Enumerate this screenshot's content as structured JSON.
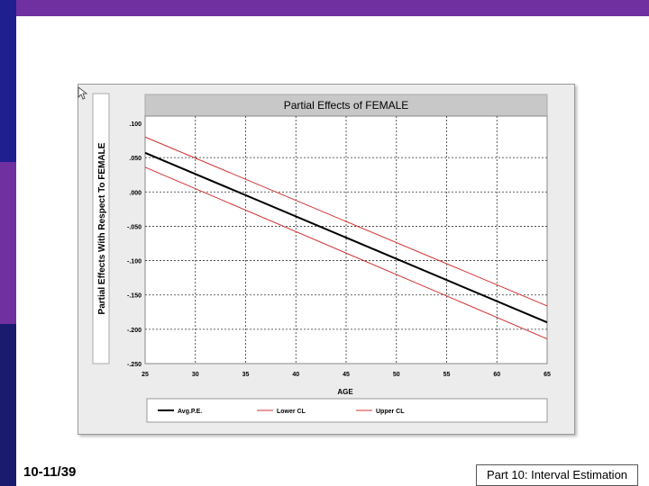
{
  "slide": {
    "number": "10-11/39",
    "footer": "Part 10: Interval Estimation"
  },
  "colors": {
    "top_bar": "#7030a0",
    "sidebar_top": "#1f1f8f",
    "sidebar_mid": "#7030a0",
    "sidebar_bottom": "#1a1a6e",
    "avg_line": "#000000",
    "ci_line": "#d03030"
  },
  "chart_data": {
    "type": "line",
    "title": "Partial Effects of FEMALE",
    "xlabel": "AGE",
    "ylabel": "Partial Effects With Respect To FEMALE",
    "xlim": [
      25,
      65
    ],
    "ylim": [
      -0.25,
      0.1
    ],
    "x_ticks": [
      25,
      30,
      35,
      40,
      45,
      50,
      55,
      60,
      65
    ],
    "y_ticks": [
      0.1,
      0.05,
      0.0,
      -0.05,
      -0.1,
      -0.15,
      -0.2,
      -0.25
    ],
    "x_tick_labels": [
      "25",
      "30",
      "35",
      "40",
      "45",
      "50",
      "55",
      "60",
      "65"
    ],
    "y_tick_labels": [
      ".100",
      ".050",
      ".000",
      "-.050",
      "-.100",
      "-.150",
      "-.200",
      "-.250"
    ],
    "grid": true,
    "legend_position": "bottom",
    "series": [
      {
        "name": "Avg.P.E.",
        "x": [
          25,
          65
        ],
        "y": [
          0.057,
          -0.19
        ],
        "color": "#000000",
        "width": 2
      },
      {
        "name": "Lower CL",
        "x": [
          25,
          65
        ],
        "y": [
          0.036,
          -0.214
        ],
        "color": "#d03030",
        "width": 1
      },
      {
        "name": "Upper CL",
        "x": [
          25,
          65
        ],
        "y": [
          0.08,
          -0.166
        ],
        "color": "#d03030",
        "width": 1
      }
    ]
  }
}
